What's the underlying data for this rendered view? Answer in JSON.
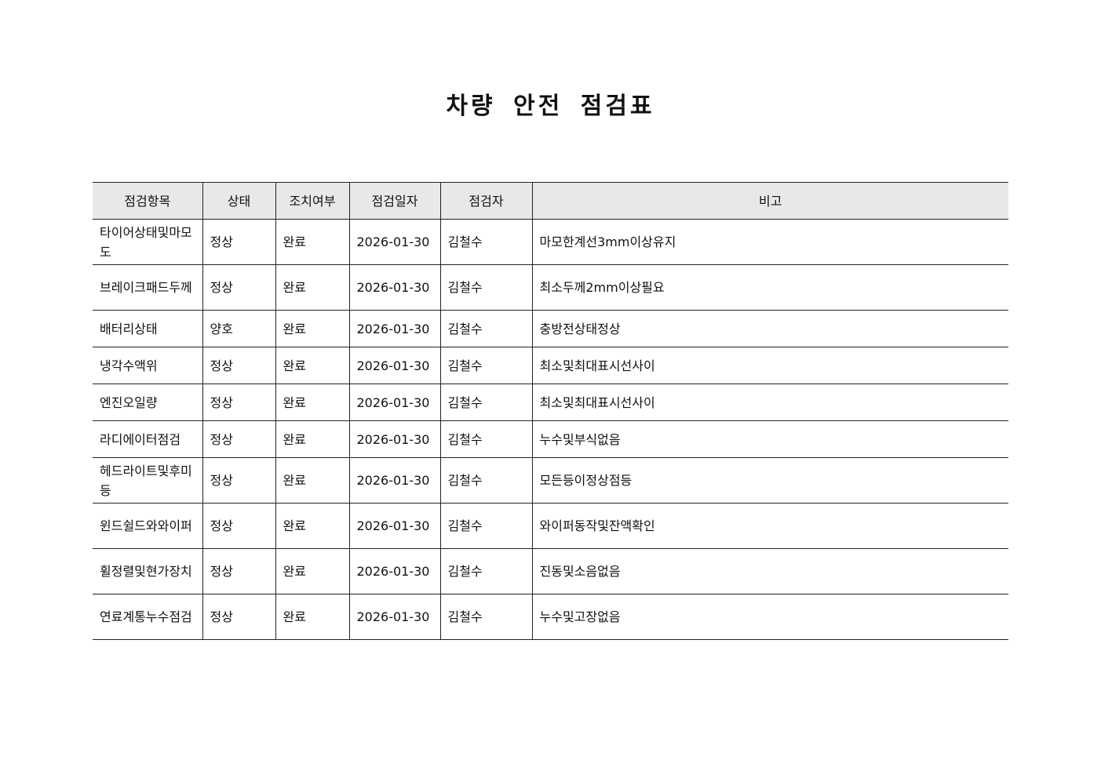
{
  "title": "차량 안전 점검표",
  "table": {
    "headers": [
      "점검항목",
      "상태",
      "조치여부",
      "점검일자",
      "점검자",
      "비고"
    ],
    "rows": [
      [
        "타이어상태및마모도",
        "정상",
        "완료",
        "2026-01-30",
        "김철수",
        "마모한계선3mm이상유지"
      ],
      [
        "브레이크패드두께",
        "정상",
        "완료",
        "2026-01-30",
        "김철수",
        "최소두께2mm이상필요"
      ],
      [
        "배터리상태",
        "양호",
        "완료",
        "2026-01-30",
        "김철수",
        "충방전상태정상"
      ],
      [
        "냉각수액위",
        "정상",
        "완료",
        "2026-01-30",
        "김철수",
        "최소및최대표시선사이"
      ],
      [
        "엔진오일량",
        "정상",
        "완료",
        "2026-01-30",
        "김철수",
        "최소및최대표시선사이"
      ],
      [
        "라디에이터점검",
        "정상",
        "완료",
        "2026-01-30",
        "김철수",
        "누수및부식없음"
      ],
      [
        "헤드라이트및후미등",
        "정상",
        "완료",
        "2026-01-30",
        "김철수",
        "모든등이정상점등"
      ],
      [
        "윈드쉴드와와이퍼",
        "정상",
        "완료",
        "2026-01-30",
        "김철수",
        "와이퍼동작및잔액확인"
      ],
      [
        "휠정렬및현가장치",
        "정상",
        "완료",
        "2026-01-30",
        "김철수",
        "진동및소음없음"
      ],
      [
        "연료계통누수점검",
        "정상",
        "완료",
        "2026-01-30",
        "김철수",
        "누수및고장없음"
      ]
    ]
  }
}
